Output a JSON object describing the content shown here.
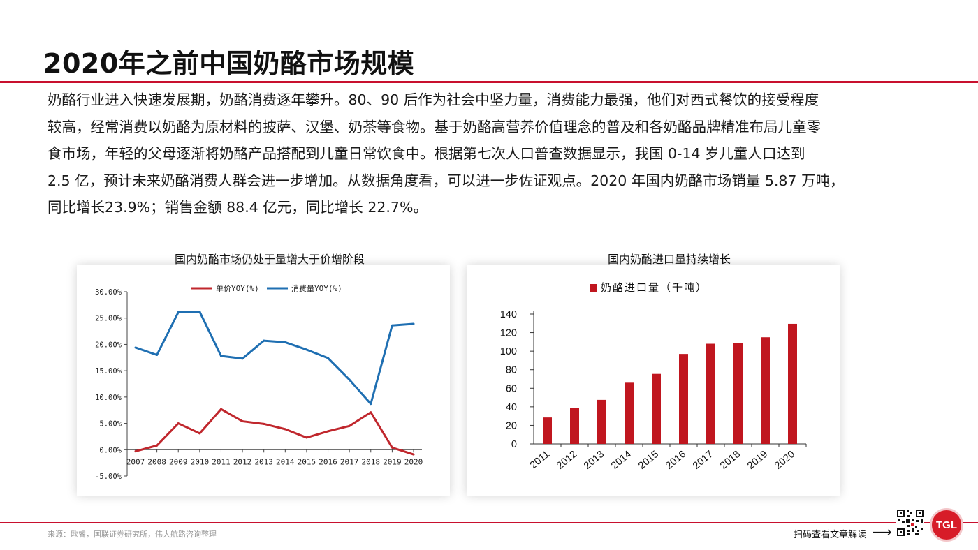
{
  "page": {
    "title": "2020年之前中国奶酪市场规模",
    "paragraph_lines": [
      "奶酪行业进入快速发展期，奶酪消费逐年攀升。80、90 后作为社会中坚力量，消费能力最强，他们对西式餐饮的接受程度",
      "较高，经常消费以奶酪为原材料的披萨、汉堡、奶茶等食物。基于奶酪高营养价值理念的普及和各奶酪品牌精准布局儿童零",
      "食市场，年轻的父母逐渐将奶酪产品搭配到儿童日常饮食中。根据第七次人口普查数据显示，我国 0-14 岁儿童人口达到",
      "2.5 亿，预计未来奶酪消费人群会进一步增加。从数据角度看，可以进一步佐证观点。2020 年国内奶酪市场销量 5.87 万吨，",
      "同比增长23.9%；销售金额 88.4 亿元，同比增长 22.7%。"
    ],
    "source": "来源：欧睿，国联证券研究所，伟大航路咨询整理",
    "scan_text": "扫码查看文章解读",
    "arrow": "⟶",
    "logo_text": "TGL",
    "accent_color": "#c8102e"
  },
  "chart_data": [
    {
      "type": "line",
      "title": "国内奶酪市场仍处于量增大于价增阶段",
      "x": [
        "2007",
        "2008",
        "2009",
        "2010",
        "2011",
        "2012",
        "2013",
        "2014",
        "2015",
        "2016",
        "2017",
        "2018",
        "2019",
        "2020"
      ],
      "series": [
        {
          "name": "单价YOY(%)",
          "color": "#c0272d",
          "values": [
            -0.3,
            0.8,
            5.0,
            3.1,
            7.7,
            5.4,
            4.9,
            3.9,
            2.3,
            3.5,
            4.5,
            7.1,
            0.4,
            -0.9
          ]
        },
        {
          "name": "消费量YOY(%)",
          "color": "#1f6fb2",
          "values": [
            19.4,
            18.0,
            26.1,
            26.2,
            17.8,
            17.3,
            20.7,
            20.4,
            19.0,
            17.4,
            13.3,
            8.7,
            23.6,
            23.9
          ]
        }
      ],
      "ylim": [
        -5,
        30
      ],
      "yticks": [
        "30.00%",
        "25.00%",
        "20.00%",
        "15.00%",
        "10.00%",
        "5.00%",
        "0.00%",
        "-5.00%"
      ],
      "legend": "top",
      "grid": false
    },
    {
      "type": "bar",
      "title": "国内奶酪进口量持续增长",
      "legend_label": "奶酪进口量（千吨）",
      "color": "#c0161f",
      "categories": [
        "2011",
        "2012",
        "2013",
        "2014",
        "2015",
        "2016",
        "2017",
        "2018",
        "2019",
        "2020"
      ],
      "values": [
        28.5,
        39,
        47.5,
        66,
        75.5,
        97,
        108,
        108.5,
        115,
        129.5
      ],
      "ylim": [
        0,
        140
      ],
      "yticks": [
        "0",
        "20",
        "40",
        "60",
        "80",
        "100",
        "120",
        "140"
      ],
      "legend": "top",
      "grid": false
    }
  ]
}
